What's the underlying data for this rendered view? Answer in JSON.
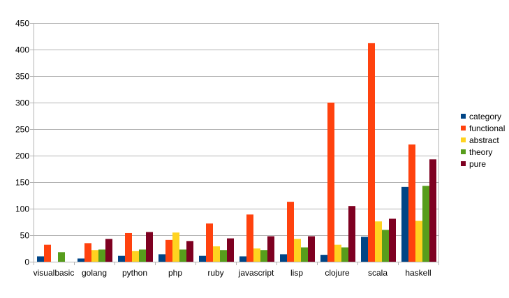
{
  "chart_data": {
    "type": "bar",
    "title": "",
    "xlabel": "",
    "ylabel": "",
    "ylim": [
      0,
      450
    ],
    "yticks": [
      0,
      50,
      100,
      150,
      200,
      250,
      300,
      350,
      400,
      450
    ],
    "grid": true,
    "legend_position": "right",
    "categories": [
      "visualbasic",
      "golang",
      "python",
      "php",
      "ruby",
      "javascript",
      "lisp",
      "clojure",
      "scala",
      "haskell"
    ],
    "series": [
      {
        "name": "category",
        "color": "#004586",
        "values": [
          10,
          6,
          11,
          14,
          11,
          10,
          14,
          13,
          47,
          141
        ]
      },
      {
        "name": "functional",
        "color": "#ff420e",
        "values": [
          32,
          35,
          54,
          41,
          72,
          89,
          113,
          300,
          412,
          221
        ]
      },
      {
        "name": "abstract",
        "color": "#ffd320",
        "values": [
          0,
          22,
          20,
          55,
          29,
          25,
          43,
          32,
          76,
          77
        ]
      },
      {
        "name": "theory",
        "color": "#579d1c",
        "values": [
          18,
          23,
          23,
          23,
          22,
          22,
          27,
          27,
          60,
          143
        ]
      },
      {
        "name": "pure",
        "color": "#7e0021",
        "values": [
          0,
          43,
          56,
          39,
          44,
          48,
          48,
          105,
          81,
          193
        ]
      }
    ]
  }
}
